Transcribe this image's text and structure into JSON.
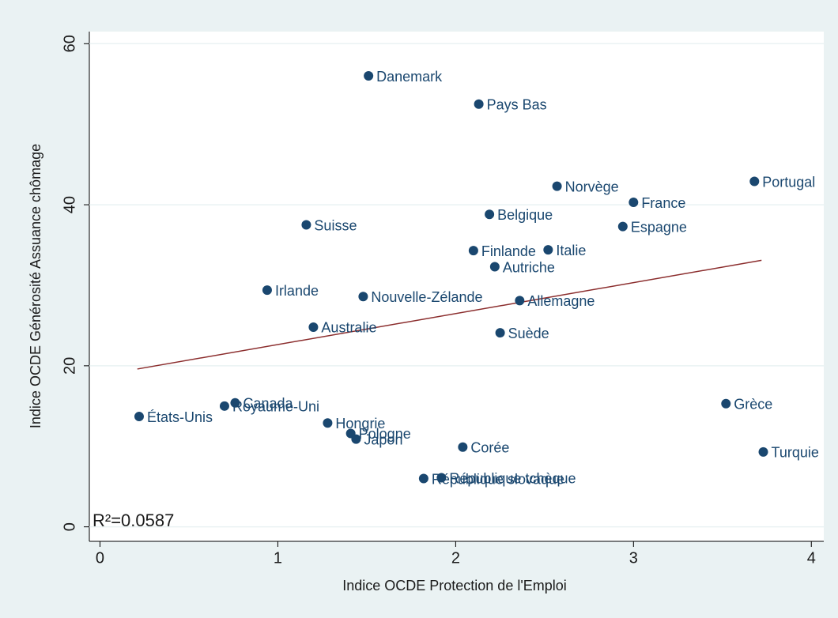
{
  "chart_data": {
    "type": "scatter",
    "xlabel": "Indice OCDE Protection de l'Emploi",
    "ylabel": "Indice OCDE Générosité Assuance chômage",
    "annotation": "R²=0.0587",
    "xlim": [
      -0.06,
      4.07
    ],
    "ylim": [
      -1.8,
      61.5
    ],
    "xticks": [
      0,
      1,
      2,
      3,
      4
    ],
    "yticks": [
      0,
      20,
      40,
      60
    ],
    "point_labels": [
      "Danemark",
      "Pays Bas",
      "Portugal",
      "Norvège",
      "France",
      "Belgique",
      "Suisse",
      "Espagne",
      "Finlande",
      "Italie",
      "Autriche",
      "Irlande",
      "Nouvelle-Zélande",
      "Allemagne",
      "Australie",
      "Suède",
      "Grèce",
      "Canada",
      "Royaume-Uni",
      "États-Unis",
      "Hongrie",
      "Pologne",
      "Japon",
      "Corée",
      "Turquie",
      "République tchèque",
      "République slovaque"
    ],
    "x": [
      1.51,
      2.13,
      3.68,
      2.57,
      3.0,
      2.19,
      1.16,
      2.94,
      2.1,
      2.52,
      2.22,
      0.94,
      1.48,
      2.36,
      1.2,
      2.25,
      3.52,
      0.76,
      0.7,
      0.22,
      1.28,
      1.41,
      1.44,
      2.04,
      3.73,
      1.92,
      1.82
    ],
    "series": [
      {
        "color": "#1a476f",
        "values": [
          56.0,
          52.5,
          42.9,
          42.3,
          40.3,
          38.8,
          37.5,
          37.3,
          34.3,
          34.4,
          32.3,
          29.4,
          28.6,
          28.1,
          24.8,
          24.1,
          15.3,
          15.4,
          15.0,
          13.7,
          12.9,
          11.6,
          10.9,
          9.9,
          9.3,
          6.1,
          6.0
        ]
      }
    ],
    "fit": {
      "color": "#8b2d2d",
      "x": [
        0.21,
        3.72
      ],
      "y": [
        19.6,
        33.1
      ]
    }
  }
}
